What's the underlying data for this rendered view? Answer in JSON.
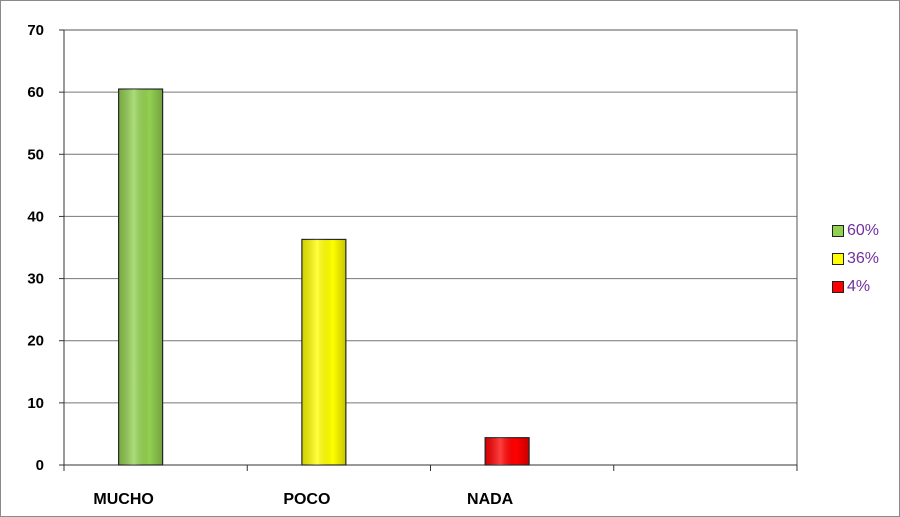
{
  "chart_data": {
    "type": "bar",
    "categories": [
      "MUCHO",
      "POCO",
      "NADA",
      ""
    ],
    "values": [
      60.5,
      36.3,
      4.4,
      null
    ],
    "colors": [
      "#92d050",
      "#ffff00",
      "#ff0000"
    ],
    "ylim": [
      0,
      70
    ],
    "yticks": [
      "0",
      "10",
      "20",
      "30",
      "40",
      "50",
      "60",
      "70"
    ],
    "grid": true,
    "legend_position": "right",
    "legend": [
      {
        "label": "60%",
        "color": "#92d050"
      },
      {
        "label": "36%",
        "color": "#ffff00"
      },
      {
        "label": "4%",
        "color": "#ff0000"
      }
    ]
  }
}
